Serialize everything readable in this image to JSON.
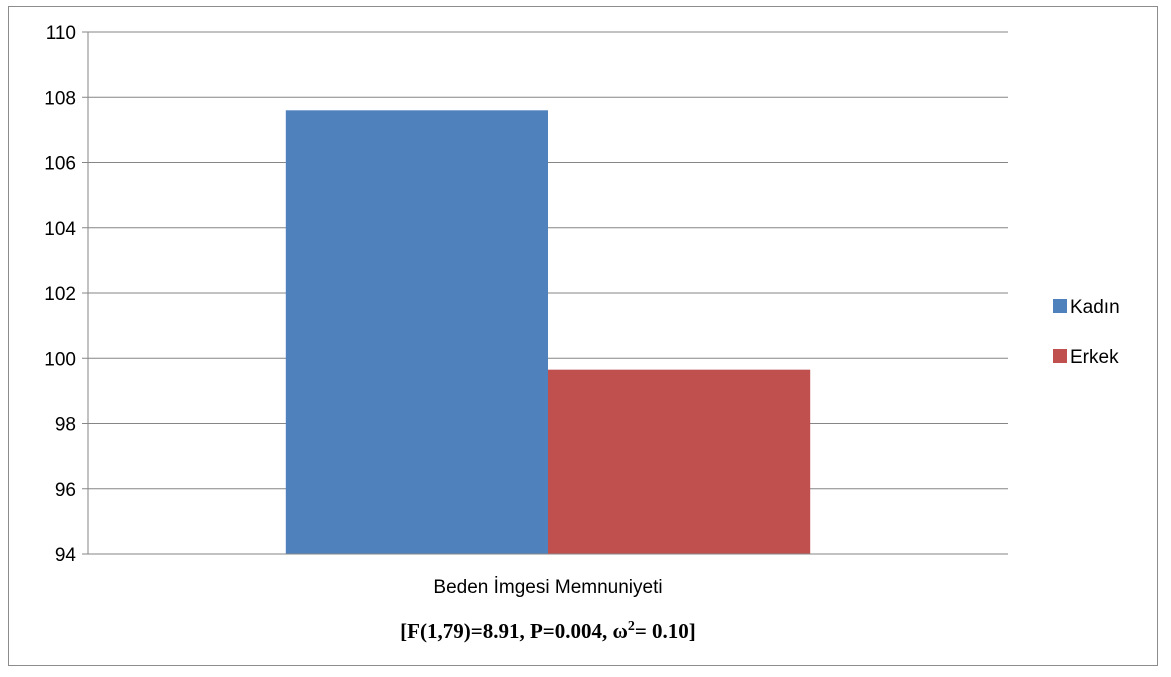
{
  "chart_data": {
    "type": "bar",
    "categories": [
      "Beden İmgesi Memnuniyeti"
    ],
    "series": [
      {
        "name": "Kadın",
        "values": [
          107.6
        ],
        "color": "#4f81bd"
      },
      {
        "name": "Erkek",
        "values": [
          99.65
        ],
        "color": "#c0504d"
      }
    ],
    "ylim": [
      94,
      110
    ],
    "yticks": [
      94,
      96,
      98,
      100,
      102,
      104,
      106,
      108,
      110
    ],
    "grid": true,
    "legend": "right",
    "annotation": "[F(1,79)=8.91, P=0.004, ω²= 0.10]",
    "annotation_parts": {
      "prefix": "[F(1,79)=8.91, P=0.004, ω",
      "sup": "2",
      "suffix": "= 0.10]"
    }
  }
}
